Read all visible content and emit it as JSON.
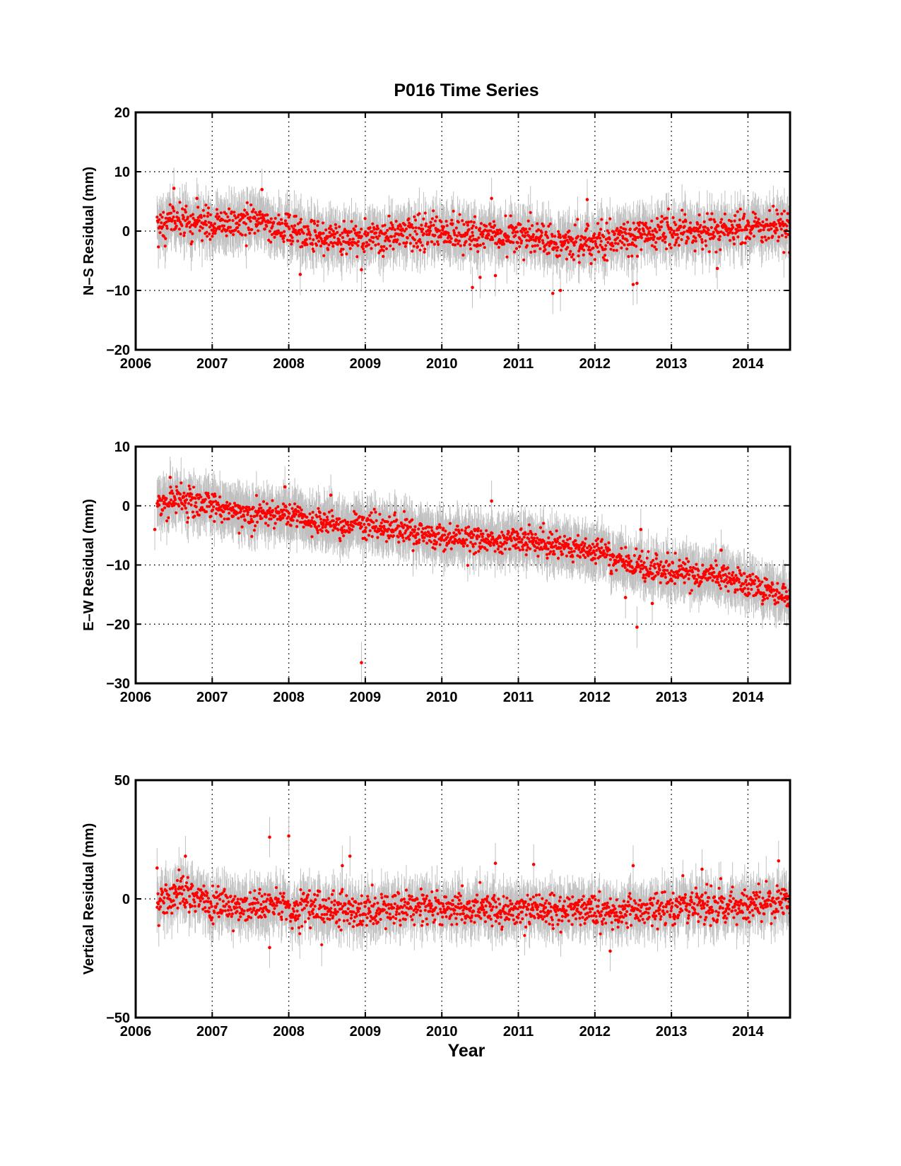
{
  "figure": {
    "title": "P016 Time Series",
    "xlabel": "Year"
  },
  "chart_data": [
    {
      "type": "scatter",
      "title": "P016 Time Series",
      "xlabel": "",
      "ylabel": "N–S Residual (mm)",
      "xlim": [
        2006,
        2014.55
      ],
      "ylim": [
        -20,
        20
      ],
      "xticks": [
        2006,
        2007,
        2008,
        2009,
        2010,
        2011,
        2012,
        2013,
        2014
      ],
      "yticks": [
        -20,
        -10,
        0,
        10,
        20
      ],
      "ytick_labels": [
        "−20",
        "−10",
        "0",
        "10",
        "20"
      ],
      "grid": true,
      "marker_color": "#ff0000",
      "errorbar_color": "#c0c0c0",
      "errorbar_half_height": 3.5,
      "x_start": 2006.28,
      "x_end": 2014.55,
      "trend": {
        "x": [
          2006.3,
          2006.6,
          2007.0,
          2007.6,
          2008.0,
          2008.5,
          2009.0,
          2009.5,
          2010.0,
          2010.5,
          2011.0,
          2011.5,
          2012.0,
          2012.5,
          2013.0,
          2013.5,
          2014.0,
          2014.55
        ],
        "y": [
          1.0,
          2.0,
          1.0,
          1.5,
          0.0,
          -1.0,
          -1.5,
          -0.5,
          0.0,
          -0.5,
          -1.0,
          -2.5,
          -1.5,
          -1.0,
          0.0,
          0.0,
          0.5,
          1.0
        ]
      },
      "noise_sd": 1.4,
      "outliers": [
        {
          "x": 2006.5,
          "y": 7.2
        },
        {
          "x": 2006.8,
          "y": 5.5
        },
        {
          "x": 2007.65,
          "y": 7.0
        },
        {
          "x": 2008.15,
          "y": -7.3
        },
        {
          "x": 2008.95,
          "y": -6.5
        },
        {
          "x": 2010.4,
          "y": -9.5
        },
        {
          "x": 2010.5,
          "y": -7.8
        },
        {
          "x": 2010.65,
          "y": 5.5
        },
        {
          "x": 2010.7,
          "y": -7.5
        },
        {
          "x": 2011.45,
          "y": -10.5
        },
        {
          "x": 2011.55,
          "y": -10.0
        },
        {
          "x": 2011.9,
          "y": 5.3
        },
        {
          "x": 2012.5,
          "y": -9.0
        },
        {
          "x": 2012.55,
          "y": -8.8
        },
        {
          "x": 2013.6,
          "y": -6.3
        }
      ]
    },
    {
      "type": "scatter",
      "xlabel": "",
      "ylabel": "E–W Residual (mm)",
      "xlim": [
        2006,
        2014.55
      ],
      "ylim": [
        -30,
        10
      ],
      "xticks": [
        2006,
        2007,
        2008,
        2009,
        2010,
        2011,
        2012,
        2013,
        2014
      ],
      "yticks": [
        -30,
        -20,
        -10,
        0,
        10
      ],
      "ytick_labels": [
        "−30",
        "−20",
        "−10",
        "0",
        "10"
      ],
      "grid": true,
      "marker_color": "#ff0000",
      "errorbar_color": "#c0c0c0",
      "errorbar_half_height": 3.5,
      "x_start": 2006.28,
      "x_end": 2014.55,
      "trend": {
        "x": [
          2006.3,
          2006.6,
          2007.0,
          2007.5,
          2008.0,
          2008.5,
          2009.0,
          2009.5,
          2010.0,
          2010.5,
          2011.0,
          2011.5,
          2012.0,
          2012.5,
          2013.0,
          2013.5,
          2014.0,
          2014.55
        ],
        "y": [
          0.5,
          0.8,
          0.0,
          -1.5,
          -1.0,
          -3.0,
          -3.5,
          -4.0,
          -5.0,
          -5.8,
          -6.0,
          -6.8,
          -7.8,
          -9.8,
          -11.0,
          -12.0,
          -13.0,
          -15.5
        ]
      },
      "noise_sd": 1.1,
      "outliers": [
        {
          "x": 2006.45,
          "y": 4.8
        },
        {
          "x": 2006.25,
          "y": -4.0
        },
        {
          "x": 2007.95,
          "y": 3.2
        },
        {
          "x": 2008.55,
          "y": 1.8
        },
        {
          "x": 2008.95,
          "y": -26.5
        },
        {
          "x": 2010.65,
          "y": 0.8
        },
        {
          "x": 2012.4,
          "y": -15.5
        },
        {
          "x": 2012.55,
          "y": -20.5
        },
        {
          "x": 2012.75,
          "y": -16.5
        },
        {
          "x": 2012.6,
          "y": -4.0
        },
        {
          "x": 2013.65,
          "y": -7.5
        }
      ]
    },
    {
      "type": "scatter",
      "xlabel": "Year",
      "ylabel": "Vertical Residual (mm)",
      "xlim": [
        2006,
        2014.55
      ],
      "ylim": [
        -50,
        50
      ],
      "xticks": [
        2006,
        2007,
        2008,
        2009,
        2010,
        2011,
        2012,
        2013,
        2014
      ],
      "yticks": [
        -50,
        0,
        50
      ],
      "ytick_labels": [
        "−50",
        "0",
        "50"
      ],
      "grid": true,
      "marker_color": "#ff0000",
      "errorbar_color": "#c0c0c0",
      "errorbar_half_height": 8.5,
      "x_start": 2006.28,
      "x_end": 2014.55,
      "trend": {
        "x": [
          2006.3,
          2006.6,
          2007.0,
          2007.5,
          2008.0,
          2008.5,
          2009.0,
          2009.5,
          2010.0,
          2010.5,
          2011.0,
          2011.5,
          2012.0,
          2012.5,
          2013.0,
          2013.5,
          2014.0,
          2014.55
        ],
        "y": [
          -1.0,
          3.0,
          -2.0,
          -3.0,
          -3.5,
          -4.0,
          -5.0,
          -4.0,
          -3.0,
          -4.0,
          -5.0,
          -4.5,
          -6.0,
          -5.0,
          -3.0,
          -3.5,
          -2.5,
          -1.0
        ]
      },
      "noise_sd": 3.6,
      "outliers": [
        {
          "x": 2006.28,
          "y": 13.0
        },
        {
          "x": 2006.65,
          "y": 18.0
        },
        {
          "x": 2007.75,
          "y": 26.0
        },
        {
          "x": 2008.0,
          "y": 26.5
        },
        {
          "x": 2007.75,
          "y": -20.5
        },
        {
          "x": 2008.7,
          "y": 14.0
        },
        {
          "x": 2008.8,
          "y": 18.0
        },
        {
          "x": 2010.7,
          "y": 15.0
        },
        {
          "x": 2012.2,
          "y": -22.0
        },
        {
          "x": 2011.2,
          "y": 14.5
        },
        {
          "x": 2012.5,
          "y": 14.0
        },
        {
          "x": 2013.4,
          "y": 12.5
        },
        {
          "x": 2014.4,
          "y": 16.0
        }
      ]
    }
  ]
}
